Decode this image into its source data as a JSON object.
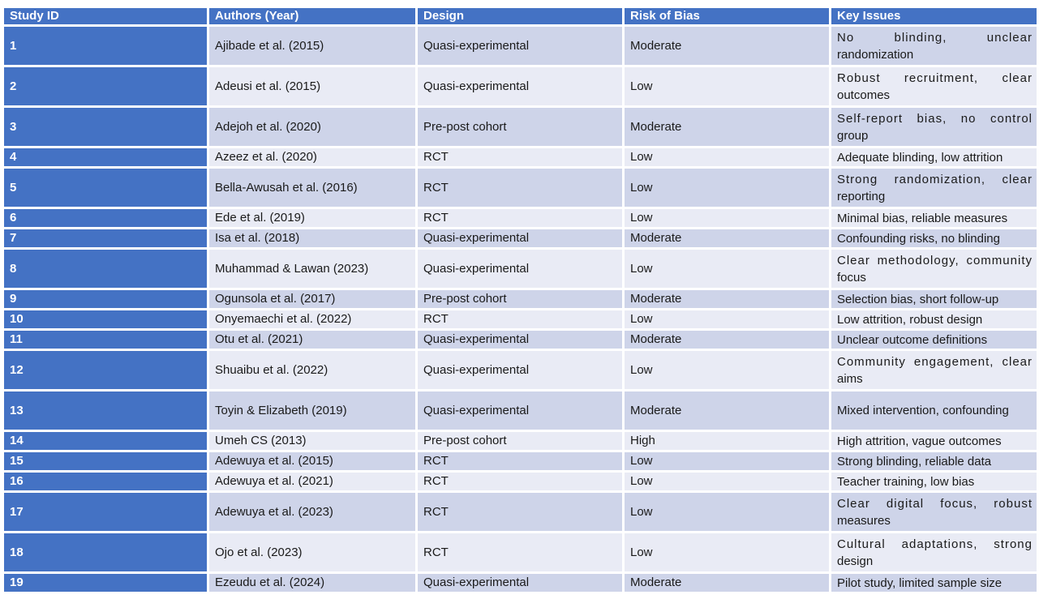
{
  "colors": {
    "header_bg": "#4472C4",
    "id_col_bg": "#4472C4",
    "header_text": "#FFFFFF",
    "band_dark": "#CED4E9",
    "band_light": "#E9EBF5",
    "body_text": "#1A1A1A",
    "border": "#FFFFFF"
  },
  "table": {
    "columns": [
      {
        "key": "study-id",
        "label": "Study ID"
      },
      {
        "key": "authors-year",
        "label": "Authors (Year)"
      },
      {
        "key": "design",
        "label": "Design"
      },
      {
        "key": "risk-of-bias",
        "label": "Risk of Bias"
      },
      {
        "key": "key-issues",
        "label": "Key Issues"
      }
    ],
    "rows": [
      {
        "study_id": "1",
        "authors": "Ajibade et al. (2015)",
        "design": "Quasi-experimental",
        "risk_of_bias": "Moderate",
        "key_issues": [
          "No blinding, unclear",
          "randomization"
        ],
        "tall": true
      },
      {
        "study_id": "2",
        "authors": "Adeusi et al. (2015)",
        "design": "Quasi-experimental",
        "risk_of_bias": "Low",
        "key_issues": [
          "Robust recruitment, clear",
          "outcomes"
        ],
        "tall": true
      },
      {
        "study_id": "3",
        "authors": "Adejoh et al. (2020)",
        "design": "Pre-post cohort",
        "risk_of_bias": "Moderate",
        "key_issues": [
          "Self-report bias, no control",
          "group"
        ],
        "tall": true
      },
      {
        "study_id": "4",
        "authors": "Azeez et al. (2020)",
        "design": "RCT",
        "risk_of_bias": "Low",
        "key_issues": [
          "Adequate blinding, low attrition"
        ],
        "tall": false
      },
      {
        "study_id": "5",
        "authors": "Bella-Awusah et al. (2016)",
        "design": "RCT",
        "risk_of_bias": "Low",
        "key_issues": [
          "Strong randomization, clear",
          "reporting"
        ],
        "tall": true
      },
      {
        "study_id": "6",
        "authors": "Ede et al. (2019)",
        "design": "RCT",
        "risk_of_bias": "Low",
        "key_issues": [
          "Minimal bias, reliable measures"
        ],
        "tall": false
      },
      {
        "study_id": "7",
        "authors": "Isa et al. (2018)",
        "design": "Quasi-experimental",
        "risk_of_bias": "Moderate",
        "key_issues": [
          "Confounding risks, no blinding"
        ],
        "tall": false
      },
      {
        "study_id": "8",
        "authors": "Muhammad & Lawan (2023)",
        "design": "Quasi-experimental",
        "risk_of_bias": "Low",
        "key_issues": [
          "Clear methodology, community",
          "focus"
        ],
        "tall": true
      },
      {
        "study_id": "9",
        "authors": "Ogunsola et al. (2017)",
        "design": "Pre-post cohort",
        "risk_of_bias": "Moderate",
        "key_issues": [
          "Selection bias, short follow-up"
        ],
        "tall": false
      },
      {
        "study_id": "10",
        "authors": "Onyemaechi et al. (2022)",
        "design": "RCT",
        "risk_of_bias": "Low",
        "key_issues": [
          "Low attrition, robust design"
        ],
        "tall": false
      },
      {
        "study_id": "11",
        "authors": "Otu et al. (2021)",
        "design": "Quasi-experimental",
        "risk_of_bias": "Moderate",
        "key_issues": [
          "Unclear outcome definitions"
        ],
        "tall": false
      },
      {
        "study_id": "12",
        "authors": "Shuaibu et al. (2022)",
        "design": "Quasi-experimental",
        "risk_of_bias": "Low",
        "key_issues": [
          "Community engagement, clear",
          "aims"
        ],
        "tall": true
      },
      {
        "study_id": "13",
        "authors": "Toyin & Elizabeth (2019)",
        "design": "Quasi-experimental",
        "risk_of_bias": "Moderate",
        "key_issues": [
          "Mixed intervention, confounding"
        ],
        "tall": true
      },
      {
        "study_id": "14",
        "authors": "Umeh CS (2013)",
        "design": "Pre-post cohort",
        "risk_of_bias": "High",
        "key_issues": [
          "High attrition, vague outcomes"
        ],
        "tall": false
      },
      {
        "study_id": "15",
        "authors": "Adewuya et al. (2015)",
        "design": "RCT",
        "risk_of_bias": "Low",
        "key_issues": [
          "Strong blinding, reliable data"
        ],
        "tall": false
      },
      {
        "study_id": "16",
        "authors": "Adewuya et al. (2021)",
        "design": "RCT",
        "risk_of_bias": "Low",
        "key_issues": [
          "Teacher training, low bias"
        ],
        "tall": false
      },
      {
        "study_id": "17",
        "authors": "Adewuya et al. (2023)",
        "design": "RCT",
        "risk_of_bias": "Low",
        "key_issues": [
          "Clear digital focus, robust",
          "measures"
        ],
        "tall": true
      },
      {
        "study_id": "18",
        "authors": "Ojo et al. (2023)",
        "design": "RCT",
        "risk_of_bias": "Low",
        "key_issues": [
          "Cultural adaptations, strong",
          "design"
        ],
        "tall": true
      },
      {
        "study_id": "19",
        "authors": "Ezeudu et al. (2024)",
        "design": "Quasi-experimental",
        "risk_of_bias": "Moderate",
        "key_issues": [
          "Pilot study, limited sample size"
        ],
        "tall": false
      }
    ]
  }
}
